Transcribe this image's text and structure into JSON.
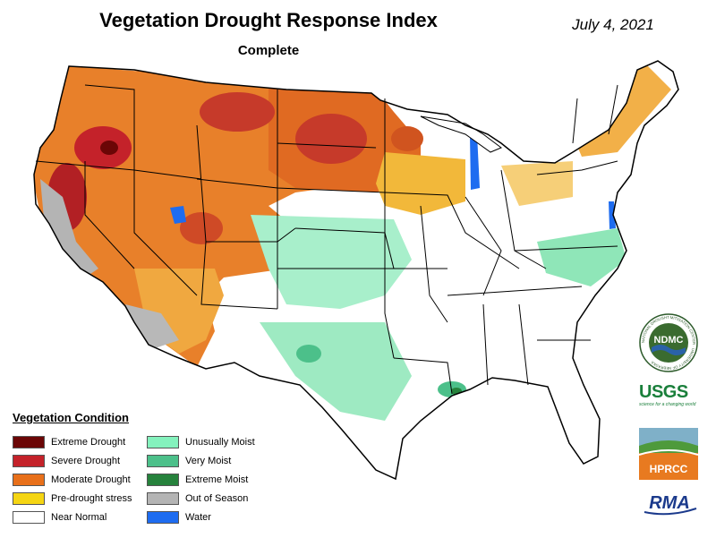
{
  "header": {
    "title": "Vegetation Drought Response Index",
    "subtitle": "Complete",
    "date": "July 4, 2021"
  },
  "colors": {
    "extreme_drought": "#6b0606",
    "severe_drought": "#c4222a",
    "moderate_drought": "#e8701a",
    "pre_drought": "#f5d513",
    "near_normal": "#ffffff",
    "unusually_moist": "#84f2bd",
    "very_moist": "#4cc08a",
    "extreme_moist": "#26823c",
    "out_of_season": "#b4b4b4",
    "water": "#1e6cf0"
  },
  "legend": {
    "title": "Vegetation Condition",
    "items": [
      {
        "label": "Extreme Drought",
        "color": "#6b0606"
      },
      {
        "label": "Severe Drought",
        "color": "#c4222a"
      },
      {
        "label": "Moderate Drought",
        "color": "#e8701a"
      },
      {
        "label": "Pre-drought stress",
        "color": "#f5d513"
      },
      {
        "label": "Near Normal",
        "color": "#ffffff"
      },
      {
        "label": "Unusually Moist",
        "color": "#84f2bd"
      },
      {
        "label": "Very Moist",
        "color": "#4cc08a"
      },
      {
        "label": "Extreme Moist",
        "color": "#26823c"
      },
      {
        "label": "Out of Season",
        "color": "#b4b4b4"
      },
      {
        "label": "Water",
        "color": "#1e6cf0"
      }
    ]
  },
  "logos": {
    "ndmc": "NDMC",
    "ndmc_ring": "NATIONAL DROUGHT MITIGATION CENTER · UNIVERSITY OF NEBRASKA",
    "usgs": "USGS",
    "usgs_tagline": "science for a changing world",
    "hprcc": "HPRCC",
    "rma": "RMA"
  }
}
